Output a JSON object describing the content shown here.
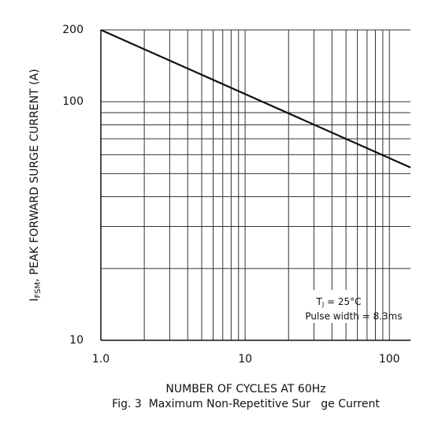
{
  "chart_data": {
    "type": "line",
    "x": [
      1,
      140
    ],
    "values": [
      200,
      53
    ],
    "color": "#111111",
    "xlabel": "NUMBER OF CYCLES AT 60Hz",
    "ylabel": {
      "main": "I",
      "sub": "FSM",
      "rest": ", PEAK FORWARD SURGE CURRENT (A)"
    },
    "caption": "Fig. 3  Maximum Non-Repetitive Sur   ge Current",
    "annotation": {
      "t": "T",
      "t_sub": "J",
      "t_rest": " = 25°C",
      "pulse": "Pulse width = 8.3ms"
    },
    "xlim": [
      1,
      140
    ],
    "ylim": [
      10,
      200
    ],
    "log_x": true,
    "log_y": true,
    "xticks": [
      {
        "value": 1,
        "label": "1.0"
      },
      10,
      100
    ],
    "yticks": [
      10,
      100,
      200
    ],
    "xgrid": [
      2,
      3,
      4,
      5,
      6,
      7,
      8,
      9,
      20,
      30,
      40,
      50,
      60,
      70,
      80,
      90
    ],
    "ygrid": [
      20,
      30,
      40,
      50,
      60,
      70,
      80,
      90
    ],
    "grid": true
  }
}
